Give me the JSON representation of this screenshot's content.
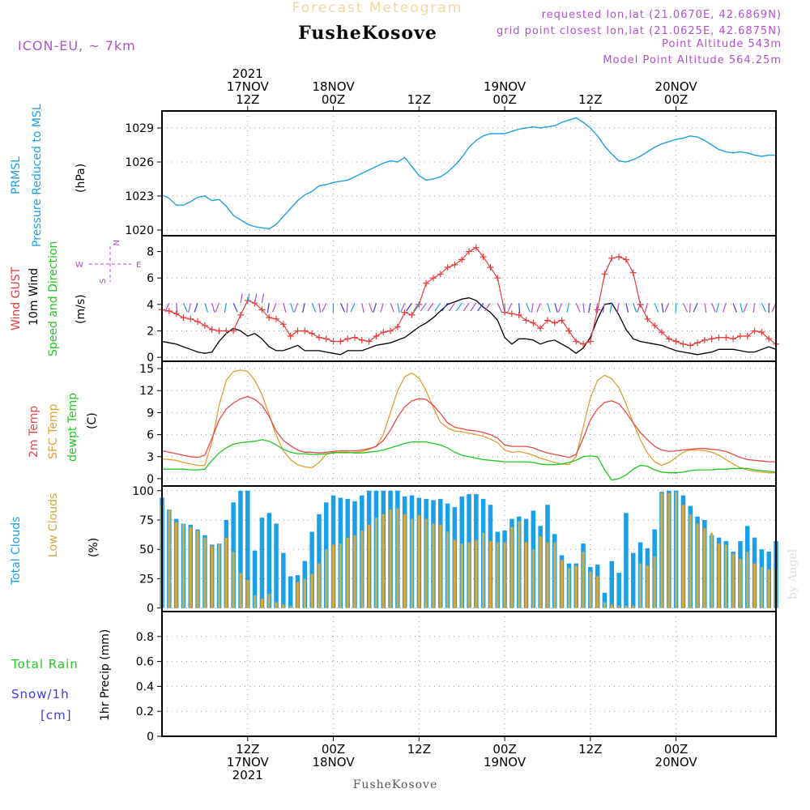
{
  "header": {
    "title": "Forecast Meteogram",
    "location": "FusheKosove",
    "model": "ICON-EU,  ~ 7km",
    "requested": "requested lon,lat (21.0670E, 42.6869N)",
    "closest": "grid point closest lon,lat (21.0625E, 42.6875N)",
    "point_altitude": "Point Altitude 543m",
    "model_altitude": "Model Point Altitude 564.25m",
    "footer_location": "FusheKosove",
    "watermark": "by Angel"
  },
  "time_axis": {
    "start_hour": 0,
    "end_hour": 86,
    "top_labels": [
      {
        "h": 12,
        "lines": [
          "2021",
          "17NOV",
          "12Z"
        ]
      },
      {
        "h": 24,
        "lines": [
          "18NOV",
          "00Z"
        ]
      },
      {
        "h": 36,
        "lines": [
          "12Z"
        ]
      },
      {
        "h": 48,
        "lines": [
          "19NOV",
          "00Z"
        ]
      },
      {
        "h": 60,
        "lines": [
          "12Z"
        ]
      },
      {
        "h": 72,
        "lines": [
          "20NOV",
          "00Z"
        ]
      }
    ],
    "bottom_labels": [
      {
        "h": 12,
        "lines": [
          "12Z",
          "17NOV",
          "2021"
        ]
      },
      {
        "h": 24,
        "lines": [
          "00Z",
          "18NOV"
        ]
      },
      {
        "h": 36,
        "lines": [
          "12Z"
        ]
      },
      {
        "h": 48,
        "lines": [
          "00Z",
          "19NOV"
        ]
      },
      {
        "h": 60,
        "lines": [
          "12Z"
        ]
      },
      {
        "h": 72,
        "lines": [
          "00Z",
          "20NOV"
        ]
      }
    ]
  },
  "panels": {
    "pressure": {
      "labels": [
        "PRMSL",
        "Pressure Reduced to MSL"
      ],
      "unit": "(hPa)"
    },
    "wind": {
      "labels": [
        "Wind GUST",
        "10m Wind",
        "Speed and Direction"
      ],
      "unit": "(m/s)",
      "compass": {
        "n": "N",
        "s": "S",
        "w": "W",
        "e": "E"
      }
    },
    "temp": {
      "labels": [
        "2m Temp",
        "SFC Temp",
        "dewpt Temp"
      ],
      "unit": "(C)"
    },
    "clouds": {
      "labels": [
        "Total Clouds",
        "Low Clouds"
      ],
      "unit": "(%)"
    },
    "precip": {
      "labels": [
        "Total  Rain",
        "Snow/1h",
        "[cm]"
      ],
      "unit": "1hr Precip (mm)"
    }
  },
  "colors": {
    "pressure": "#1ea0e6",
    "gust": "#e63c3c",
    "wind": "#000000",
    "temp2m": "#e84848",
    "sfc": "#e0a030",
    "dewpt": "#20c820",
    "total_clouds": "#1aa0e8",
    "low_clouds": "#d8a838",
    "rain": "#20c820",
    "snow": "#3c3cdc",
    "title": "#f0d8a0",
    "info": "#b050d0"
  },
  "chart_data": [
    {
      "type": "line",
      "name": "PRMSL",
      "unit": "hPa",
      "ylim": [
        1019.5,
        1030.5
      ],
      "yticks": [
        1020,
        1023,
        1026,
        1029
      ],
      "x": [
        0,
        1,
        2,
        3,
        4,
        5,
        6,
        7,
        8,
        9,
        10,
        11,
        12,
        13,
        14,
        15,
        16,
        17,
        18,
        19,
        20,
        21,
        22,
        23,
        24,
        25,
        26,
        27,
        28,
        29,
        30,
        31,
        32,
        33,
        34,
        35,
        36,
        37,
        38,
        39,
        40,
        41,
        42,
        43,
        44,
        45,
        46,
        47,
        48,
        49,
        50,
        51,
        52,
        53,
        54,
        55,
        56,
        57,
        58,
        59,
        60,
        61,
        62,
        63,
        64,
        65,
        66,
        67,
        68,
        69,
        70,
        71,
        72,
        73,
        74,
        75,
        76,
        77,
        78,
        79,
        80,
        81,
        82,
        83,
        84,
        85,
        86
      ],
      "values": [
        1023.1,
        1022.8,
        1022.2,
        1022.2,
        1022.5,
        1022.9,
        1023.0,
        1022.6,
        1022.7,
        1022.1,
        1021.3,
        1020.9,
        1020.5,
        1020.3,
        1020.2,
        1020.1,
        1020.5,
        1021.2,
        1021.9,
        1022.6,
        1023.1,
        1023.4,
        1023.9,
        1024.0,
        1024.2,
        1024.3,
        1024.4,
        1024.7,
        1025.0,
        1025.3,
        1025.6,
        1025.9,
        1026.1,
        1026.0,
        1026.4,
        1025.6,
        1024.8,
        1024.4,
        1024.5,
        1024.7,
        1025.1,
        1025.7,
        1026.4,
        1027.3,
        1027.9,
        1028.3,
        1028.5,
        1028.5,
        1028.5,
        1028.7,
        1028.9,
        1029.0,
        1029.1,
        1029.0,
        1029.1,
        1029.2,
        1029.5,
        1029.7,
        1029.9,
        1029.5,
        1029.0,
        1028.3,
        1027.4,
        1026.7,
        1026.1,
        1026.0,
        1026.2,
        1026.5,
        1026.9,
        1027.3,
        1027.6,
        1027.8,
        1028.0,
        1028.1,
        1028.3,
        1028.2,
        1027.9,
        1027.5,
        1027.1,
        1026.9,
        1026.8,
        1026.9,
        1026.8,
        1026.6,
        1026.5,
        1026.6,
        1026.6
      ]
    },
    {
      "type": "line",
      "name": "Wind",
      "unit": "m/s",
      "ylim": [
        -0.3,
        9.2
      ],
      "yticks": [
        0,
        2,
        4,
        6,
        8
      ],
      "x": [
        0,
        1,
        2,
        3,
        4,
        5,
        6,
        7,
        8,
        9,
        10,
        11,
        12,
        13,
        14,
        15,
        16,
        17,
        18,
        19,
        20,
        21,
        22,
        23,
        24,
        25,
        26,
        27,
        28,
        29,
        30,
        31,
        32,
        33,
        34,
        35,
        36,
        37,
        38,
        39,
        40,
        41,
        42,
        43,
        44,
        45,
        46,
        47,
        48,
        49,
        50,
        51,
        52,
        53,
        54,
        55,
        56,
        57,
        58,
        59,
        60,
        61,
        62,
        63,
        64,
        65,
        66,
        67,
        68,
        69,
        70,
        71,
        72,
        73,
        74,
        75,
        76,
        77,
        78,
        79,
        80,
        81,
        82,
        83,
        84,
        85,
        86
      ],
      "gust": [
        3.6,
        3.5,
        3.3,
        3.0,
        2.9,
        2.7,
        2.4,
        2.1,
        2.0,
        2.0,
        2.0,
        3.2,
        4.3,
        4.1,
        3.6,
        3.0,
        2.9,
        2.5,
        1.6,
        2.0,
        2.0,
        1.8,
        1.5,
        1.4,
        1.2,
        1.2,
        1.4,
        1.5,
        1.3,
        1.2,
        1.6,
        1.9,
        2.0,
        2.3,
        3.4,
        3.2,
        4.0,
        5.6,
        6.0,
        6.3,
        6.8,
        7.0,
        7.4,
        8.0,
        8.3,
        7.6,
        6.8,
        6.0,
        3.4,
        3.3,
        3.2,
        2.8,
        2.6,
        2.2,
        2.8,
        2.6,
        2.8,
        2.0,
        1.2,
        1.0,
        1.2,
        3.6,
        6.3,
        7.5,
        7.6,
        7.4,
        6.4,
        4.0,
        2.9,
        2.4,
        1.9,
        1.4,
        1.2,
        1.0,
        0.9,
        1.1,
        1.3,
        1.4,
        1.5,
        1.5,
        1.4,
        1.6,
        1.6,
        2.0,
        1.9,
        1.4,
        1.0
      ],
      "speed": [
        1.2,
        1.1,
        1.0,
        0.8,
        0.6,
        0.4,
        0.3,
        0.4,
        1.2,
        1.8,
        2.2,
        2.0,
        1.6,
        1.8,
        1.4,
        0.8,
        0.5,
        0.5,
        0.7,
        0.9,
        0.5,
        0.5,
        0.5,
        0.4,
        0.3,
        0.2,
        0.5,
        0.5,
        0.5,
        0.7,
        0.9,
        1.0,
        1.1,
        1.3,
        1.5,
        1.9,
        2.3,
        2.6,
        3.0,
        3.5,
        4.0,
        4.2,
        4.4,
        4.5,
        4.3,
        3.8,
        3.4,
        2.8,
        1.5,
        1.0,
        1.4,
        1.4,
        1.3,
        1.0,
        1.2,
        1.3,
        1.0,
        0.7,
        0.3,
        0.7,
        1.5,
        2.9,
        4.0,
        4.1,
        3.2,
        2.1,
        1.4,
        1.2,
        1.1,
        1.0,
        0.9,
        0.7,
        0.5,
        0.4,
        0.3,
        0.2,
        0.3,
        0.4,
        0.6,
        0.6,
        0.6,
        0.5,
        0.4,
        0.4,
        0.6,
        0.8,
        0.6
      ]
    },
    {
      "type": "line",
      "name": "Temperature",
      "unit": "C",
      "ylim": [
        -1,
        16
      ],
      "yticks": [
        0,
        3,
        6,
        9,
        12,
        15
      ],
      "x": [
        0,
        1,
        2,
        3,
        4,
        5,
        6,
        7,
        8,
        9,
        10,
        11,
        12,
        13,
        14,
        15,
        16,
        17,
        18,
        19,
        20,
        21,
        22,
        23,
        24,
        25,
        26,
        27,
        28,
        29,
        30,
        31,
        32,
        33,
        34,
        35,
        36,
        37,
        38,
        39,
        40,
        41,
        42,
        43,
        44,
        45,
        46,
        47,
        48,
        49,
        50,
        51,
        52,
        53,
        54,
        55,
        56,
        57,
        58,
        59,
        60,
        61,
        62,
        63,
        64,
        65,
        66,
        67,
        68,
        69,
        70,
        71,
        72,
        73,
        74,
        75,
        76,
        77,
        78,
        79,
        80,
        81,
        82,
        83,
        84,
        85,
        86
      ],
      "t2m": [
        3.8,
        3.6,
        3.4,
        3.2,
        3.0,
        2.9,
        3.2,
        5.5,
        8.0,
        9.5,
        10.3,
        10.9,
        11.2,
        10.8,
        10.0,
        8.5,
        6.5,
        5.2,
        4.5,
        3.9,
        3.6,
        3.6,
        3.5,
        3.6,
        3.7,
        3.8,
        3.8,
        3.8,
        3.9,
        4.1,
        4.4,
        5.2,
        6.6,
        8.4,
        9.8,
        10.6,
        10.9,
        10.8,
        10.0,
        8.9,
        7.6,
        7.0,
        6.8,
        6.6,
        6.5,
        6.3,
        6.0,
        5.5,
        4.6,
        4.4,
        4.4,
        4.4,
        4.2,
        3.8,
        3.5,
        3.3,
        3.1,
        2.9,
        3.3,
        5.5,
        8.0,
        9.5,
        10.4,
        10.6,
        10.2,
        9.0,
        7.6,
        6.3,
        5.3,
        4.4,
        3.9,
        3.7,
        3.8,
        3.9,
        4.0,
        4.1,
        4.1,
        4.0,
        3.9,
        3.7,
        3.3,
        2.9,
        2.6,
        2.5,
        2.4,
        2.3,
        2.3
      ],
      "sfc": [
        2.7,
        2.6,
        2.5,
        2.2,
        2.0,
        1.8,
        1.8,
        5.0,
        10.0,
        13.4,
        14.6,
        14.8,
        14.6,
        13.4,
        11.5,
        8.7,
        5.9,
        3.8,
        2.6,
        1.9,
        1.6,
        1.5,
        2.2,
        3.3,
        3.6,
        3.5,
        3.5,
        3.6,
        3.7,
        4.0,
        4.4,
        6.0,
        9.0,
        12.0,
        13.9,
        14.4,
        13.7,
        12.0,
        9.7,
        7.7,
        6.9,
        6.5,
        6.4,
        6.2,
        6.0,
        5.8,
        5.4,
        4.9,
        3.9,
        3.6,
        3.7,
        3.5,
        3.2,
        2.8,
        2.5,
        2.2,
        2.0,
        1.9,
        3.0,
        7.0,
        11.0,
        13.4,
        14.1,
        13.6,
        12.4,
        10.2,
        7.6,
        5.3,
        3.5,
        2.3,
        1.8,
        2.2,
        2.9,
        3.6,
        3.9,
        3.9,
        3.8,
        3.6,
        3.2,
        2.6,
        2.0,
        1.5,
        1.2,
        1.0,
        0.9,
        0.8,
        0.8
      ],
      "dewpt": [
        1.3,
        1.3,
        1.3,
        1.3,
        1.2,
        1.2,
        1.3,
        2.5,
        3.5,
        4.2,
        4.7,
        4.9,
        5.0,
        5.1,
        5.3,
        5.1,
        4.6,
        4.0,
        3.6,
        3.4,
        3.4,
        3.3,
        3.3,
        3.4,
        3.5,
        3.6,
        3.6,
        3.5,
        3.5,
        3.6,
        3.7,
        3.9,
        4.2,
        4.5,
        4.8,
        5.0,
        5.0,
        5.0,
        4.8,
        4.6,
        4.2,
        3.6,
        3.2,
        3.0,
        2.8,
        2.6,
        2.5,
        2.4,
        2.3,
        2.3,
        2.3,
        2.3,
        2.2,
        2.0,
        1.9,
        1.9,
        2.0,
        2.2,
        2.5,
        3.0,
        3.1,
        3.0,
        1.2,
        -0.2,
        0.0,
        0.5,
        1.3,
        1.8,
        1.7,
        1.2,
        0.9,
        0.8,
        0.8,
        0.9,
        1.1,
        1.2,
        1.2,
        1.2,
        1.3,
        1.3,
        1.4,
        1.4,
        1.4,
        1.2,
        1.1,
        1.0,
        0.9
      ]
    },
    {
      "type": "bar",
      "name": "Clouds",
      "unit": "%",
      "ylim": [
        -3,
        104
      ],
      "yticks": [
        0,
        25,
        50,
        75,
        100
      ],
      "x": [
        0,
        1,
        2,
        3,
        4,
        5,
        6,
        7,
        8,
        9,
        10,
        11,
        12,
        13,
        14,
        15,
        16,
        17,
        18,
        19,
        20,
        21,
        22,
        23,
        24,
        25,
        26,
        27,
        28,
        29,
        30,
        31,
        32,
        33,
        34,
        35,
        36,
        37,
        38,
        39,
        40,
        41,
        42,
        43,
        44,
        45,
        46,
        47,
        48,
        49,
        50,
        51,
        52,
        53,
        54,
        55,
        56,
        57,
        58,
        59,
        60,
        61,
        62,
        63,
        64,
        65,
        66,
        67,
        68,
        69,
        70,
        71,
        72,
        73,
        74,
        75,
        76,
        77,
        78,
        79,
        80,
        81,
        82,
        83,
        84,
        85,
        86
      ],
      "total": [
        94,
        84,
        76,
        72,
        71,
        67,
        62,
        54,
        55,
        75,
        90,
        100,
        100,
        49,
        77,
        81,
        72,
        47,
        27,
        28,
        40,
        65,
        80,
        90,
        96,
        94,
        93,
        91,
        96,
        100,
        100,
        100,
        100,
        100,
        95,
        96,
        94,
        93,
        92,
        93,
        89,
        86,
        95,
        97,
        97,
        93,
        88,
        65,
        66,
        76,
        78,
        76,
        83,
        70,
        88,
        63,
        45,
        38,
        38,
        55,
        35,
        37,
        13,
        40,
        30,
        81,
        47,
        56,
        51,
        67,
        99,
        100,
        100,
        96,
        87,
        78,
        75,
        62,
        60,
        57,
        48,
        57,
        70,
        60,
        50,
        48,
        57
      ],
      "low": [
        88,
        84,
        73,
        72,
        69,
        66,
        60,
        53,
        55,
        60,
        48,
        30,
        24,
        11,
        8,
        12,
        5,
        3,
        2,
        22,
        25,
        29,
        38,
        50,
        54,
        55,
        60,
        62,
        66,
        71,
        77,
        80,
        84,
        85,
        80,
        76,
        79,
        76,
        72,
        71,
        65,
        58,
        55,
        56,
        58,
        64,
        57,
        56,
        56,
        69,
        74,
        56,
        50,
        61,
        56,
        56,
        41,
        34,
        36,
        48,
        31,
        27,
        5,
        3,
        2,
        2,
        2,
        38,
        36,
        44,
        98,
        98,
        99,
        88,
        80,
        72,
        68,
        64,
        55,
        54,
        46,
        42,
        48,
        38,
        35,
        33,
        34
      ]
    },
    {
      "type": "bar",
      "name": "Precipitation",
      "unit": "mm",
      "ylim": [
        0,
        1
      ],
      "yticks": [
        0,
        0.2,
        0.4,
        0.6,
        0.8
      ],
      "x": [
        0,
        86
      ],
      "values": [
        0,
        0
      ]
    }
  ]
}
